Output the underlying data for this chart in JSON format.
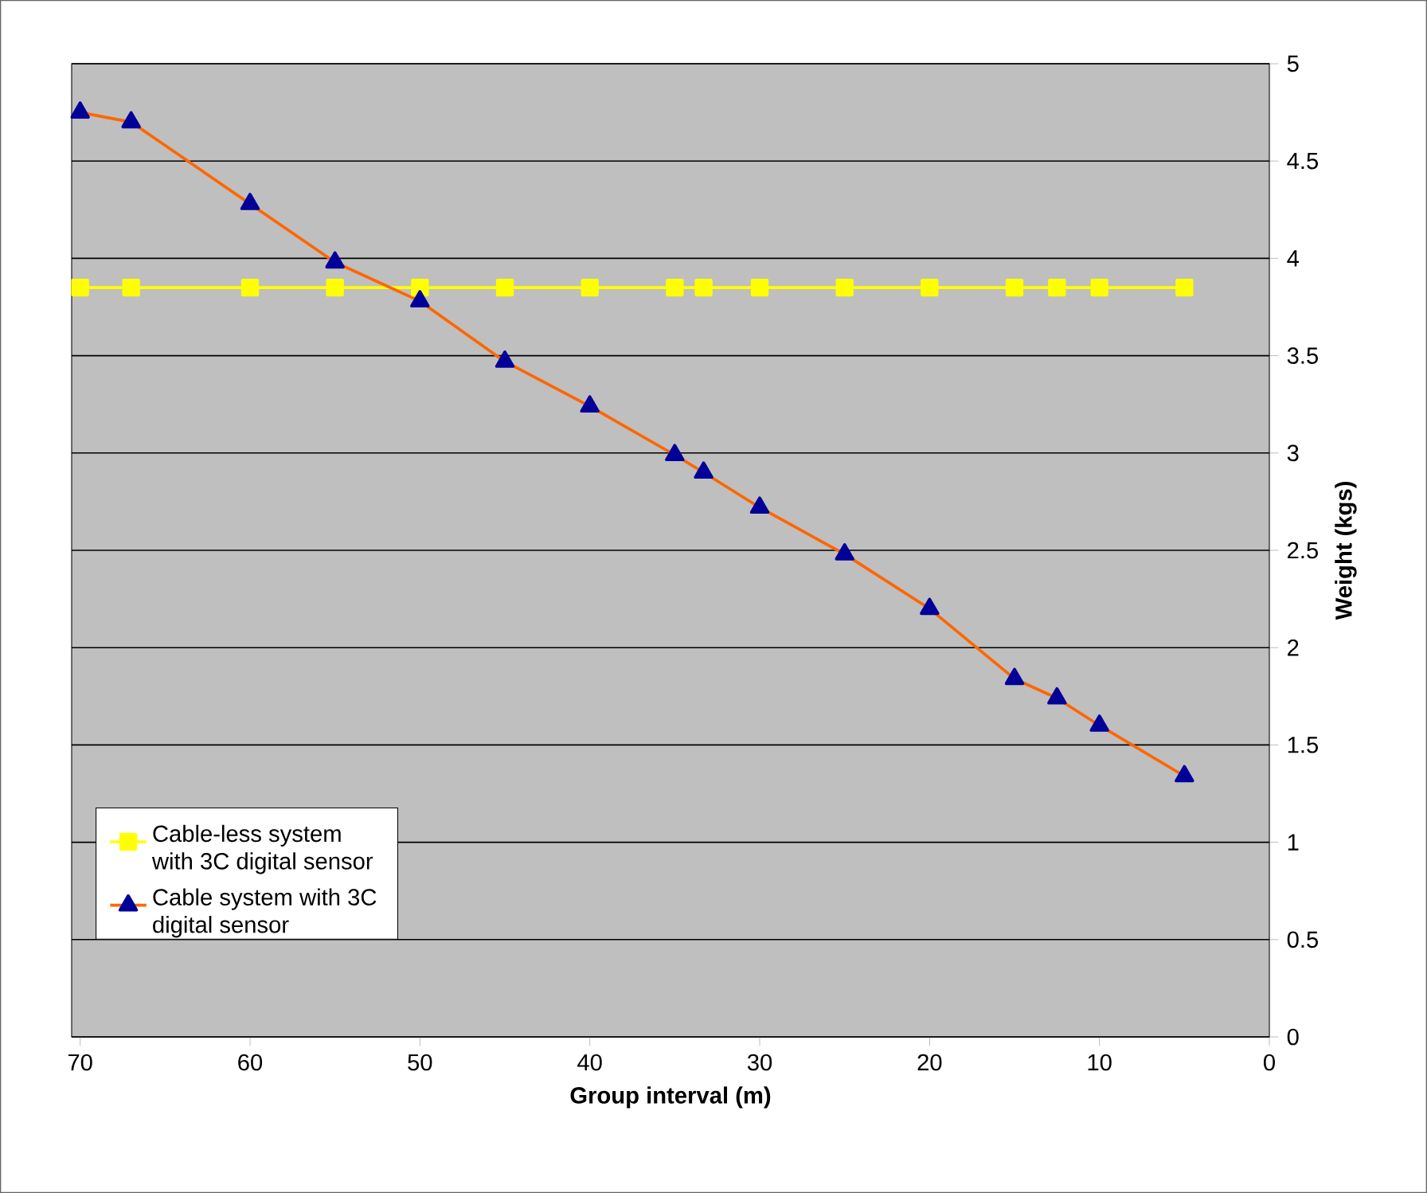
{
  "chart_data": {
    "type": "line",
    "xlabel": "Group interval (m)",
    "ylabel": "Weight (kgs)",
    "x": [
      70,
      67,
      60,
      55,
      50,
      45,
      40,
      35,
      33.3,
      30,
      25,
      20,
      15,
      12.5,
      10,
      5
    ],
    "series": [
      {
        "name": "Cable-less system with 3C digital sensor",
        "color": "#ffff00",
        "marker": "square",
        "values": [
          3.85,
          3.85,
          3.85,
          3.85,
          3.85,
          3.85,
          3.85,
          3.85,
          3.85,
          3.85,
          3.85,
          3.85,
          3.85,
          3.85,
          3.85,
          3.85
        ]
      },
      {
        "name": "Cable system with 3C digital sensor",
        "color": "#ff6600",
        "marker": "triangle",
        "values": [
          4.75,
          4.7,
          4.28,
          3.98,
          3.78,
          3.47,
          3.24,
          2.99,
          2.9,
          2.72,
          2.48,
          2.2,
          1.84,
          1.74,
          1.6,
          1.34
        ]
      }
    ],
    "xlim": [
      70.5,
      0
    ],
    "xticks": [
      70,
      60,
      50,
      40,
      30,
      20,
      10,
      0
    ],
    "ylim": [
      0,
      5
    ],
    "yticks": [
      0,
      0.5,
      1,
      1.5,
      2,
      2.5,
      3,
      3.5,
      4,
      4.5,
      5
    ],
    "grid": "y",
    "legend": "bottom left",
    "line_style": "solid"
  }
}
